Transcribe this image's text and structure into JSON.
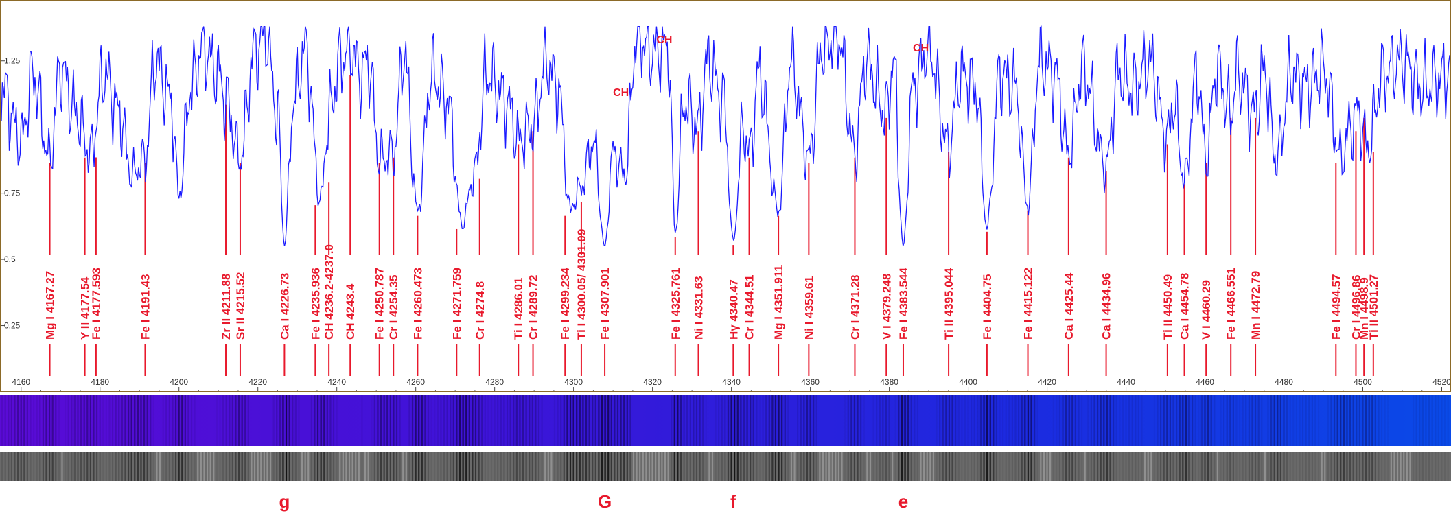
{
  "colors": {
    "spectrum_line": "#1a1aff",
    "label": "#e8192c",
    "frame": "#8c6a28",
    "axis_text": "#333333"
  },
  "chart_data": {
    "type": "line",
    "title": "",
    "xlabel": "",
    "ylabel": "",
    "xlim": [
      4155,
      4522
    ],
    "ylim": [
      0,
      1.48
    ],
    "x_ticks": [
      4160,
      4180,
      4200,
      4220,
      4240,
      4260,
      4280,
      4300,
      4320,
      4340,
      4360,
      4380,
      4400,
      4420,
      4440,
      4460,
      4480,
      4500,
      4520
    ],
    "y_ticks": [
      0.25,
      0.5,
      0.75,
      1.25
    ],
    "grid": false,
    "legend": "none",
    "series": [
      {
        "anchors": [
          [
            4155,
            1.15
          ],
          [
            4160,
            0.95
          ],
          [
            4163,
            1.2
          ],
          [
            4167.27,
            0.88
          ],
          [
            4170,
            1.22
          ],
          [
            4174,
            1.05
          ],
          [
            4177.5,
            0.9
          ],
          [
            4181,
            1.2
          ],
          [
            4185,
            1.05
          ],
          [
            4188,
            0.82
          ],
          [
            4191.43,
            0.88
          ],
          [
            4194,
            1.25
          ],
          [
            4198,
            1.1
          ],
          [
            4200,
            0.74
          ],
          [
            4203,
            1.15
          ],
          [
            4206,
            1.3
          ],
          [
            4210,
            1.2
          ],
          [
            4211.88,
            1.1
          ],
          [
            4215.52,
            0.88
          ],
          [
            4219,
            1.28
          ],
          [
            4222,
            1.35
          ],
          [
            4225,
            1.05
          ],
          [
            4226.73,
            0.55
          ],
          [
            4229,
            1.1
          ],
          [
            4232,
            1.3
          ],
          [
            4235.9,
            0.72
          ],
          [
            4238,
            1.05
          ],
          [
            4241,
            1.25
          ],
          [
            4243.4,
            1.3
          ],
          [
            4246,
            1.2
          ],
          [
            4248,
            1.25
          ],
          [
            4250.8,
            0.88
          ],
          [
            4254.35,
            0.9
          ],
          [
            4257,
            1.28
          ],
          [
            4260.47,
            0.68
          ],
          [
            4264,
            1.2
          ],
          [
            4268,
            1.1
          ],
          [
            4271.76,
            0.63
          ],
          [
            4274.8,
            0.82
          ],
          [
            4278,
            1.2
          ],
          [
            4283,
            1.1
          ],
          [
            4286,
            0.95
          ],
          [
            4289.72,
            1.0
          ],
          [
            4293,
            1.25
          ],
          [
            4296,
            1.15
          ],
          [
            4299.23,
            0.68
          ],
          [
            4300.3,
            0.73
          ],
          [
            4302,
            0.78
          ],
          [
            4305,
            0.95
          ],
          [
            4307.9,
            0.55
          ],
          [
            4310,
            0.9
          ],
          [
            4313,
            0.82
          ],
          [
            4316,
            1.35
          ],
          [
            4320,
            1.28
          ],
          [
            4324,
            1.3
          ],
          [
            4325.76,
            0.6
          ],
          [
            4328,
            1.1
          ],
          [
            4331.63,
            1.0
          ],
          [
            4334,
            1.25
          ],
          [
            4338,
            1.1
          ],
          [
            4340.47,
            0.57
          ],
          [
            4343,
            1.0
          ],
          [
            4344.51,
            0.9
          ],
          [
            4347,
            1.2
          ],
          [
            4351.91,
            0.68
          ],
          [
            4355,
            1.25
          ],
          [
            4359.61,
            0.88
          ],
          [
            4363,
            1.3
          ],
          [
            4367,
            1.35
          ],
          [
            4371.28,
            0.9
          ],
          [
            4374,
            1.25
          ],
          [
            4379.25,
            1.05
          ],
          [
            4381,
            1.25
          ],
          [
            4383.54,
            0.55
          ],
          [
            4386,
            1.15
          ],
          [
            4390,
            1.3
          ],
          [
            4395.04,
            0.92
          ],
          [
            4398,
            1.2
          ],
          [
            4402,
            1.15
          ],
          [
            4404.75,
            0.62
          ],
          [
            4408,
            1.2
          ],
          [
            4412,
            1.15
          ],
          [
            4415.12,
            0.7
          ],
          [
            4418,
            1.25
          ],
          [
            4422,
            1.2
          ],
          [
            4425.44,
            0.9
          ],
          [
            4429,
            1.22
          ],
          [
            4434.96,
            0.85
          ],
          [
            4438,
            1.2
          ],
          [
            4442,
            1.15
          ],
          [
            4446,
            1.25
          ],
          [
            4450.49,
            0.95
          ],
          [
            4452,
            1.1
          ],
          [
            4454.78,
            0.8
          ],
          [
            4458,
            1.2
          ],
          [
            4460.29,
            0.88
          ],
          [
            4463,
            1.22
          ],
          [
            4466.55,
            1.05
          ],
          [
            4468,
            1.2
          ],
          [
            4472.79,
            1.05
          ],
          [
            4475,
            1.22
          ],
          [
            4478,
            0.88
          ],
          [
            4482,
            1.2
          ],
          [
            4486,
            1.15
          ],
          [
            4490,
            1.22
          ],
          [
            4494.57,
            0.88
          ],
          [
            4496.86,
            1.0
          ],
          [
            4498.9,
            1.05
          ],
          [
            4501.27,
            0.92
          ],
          [
            4505,
            1.2
          ],
          [
            4510,
            1.25
          ],
          [
            4515,
            1.15
          ],
          [
            4522,
            1.2
          ]
        ]
      }
    ],
    "annotations": [
      {
        "label": "Mg I  4167.27",
        "x": 4167.27
      },
      {
        "label": "Y II  4177.54",
        "x": 4177.54
      },
      {
        "label": "Fe I  4177.593",
        "x": 4177.593
      },
      {
        "label": "Fe I  4191.43",
        "x": 4191.43
      },
      {
        "label": "Zr II  4211.88",
        "x": 4211.88
      },
      {
        "label": "Sr II  4215.52",
        "x": 4215.52
      },
      {
        "label": "Ca I  4226.73",
        "x": 4226.73
      },
      {
        "label": "Fe I  4235.936",
        "x": 4235.936
      },
      {
        "label": "CH  4236.2-4237.0",
        "x": 4236.6
      },
      {
        "label": "CH  4243.4",
        "x": 4243.4
      },
      {
        "label": "Fe I  4250.787",
        "x": 4250.787
      },
      {
        "label": "Cr I  4254.35",
        "x": 4254.35
      },
      {
        "label": "Fe I  4260.473",
        "x": 4260.473
      },
      {
        "label": "Fe I  4271.759",
        "x": 4271.759
      },
      {
        "label": "Cr I  4274.8",
        "x": 4274.8
      },
      {
        "label": "Ti I  4286.01",
        "x": 4286.01
      },
      {
        "label": "Cr I  4289.72",
        "x": 4289.72
      },
      {
        "label": "Fe I  4299.234",
        "x": 4299.234
      },
      {
        "label": "Ti I  4300.05/ 4301.09",
        "x": 4300.57
      },
      {
        "label": "Fe I  4307.901",
        "x": 4307.901
      },
      {
        "label": "Fe I  4325.761",
        "x": 4325.761
      },
      {
        "label": "Ni I  4331.63",
        "x": 4331.63
      },
      {
        "label": "Hγ  4340.47",
        "x": 4340.47
      },
      {
        "label": "Cr I  4344.51",
        "x": 4344.51
      },
      {
        "label": "Mg I  4351.911",
        "x": 4351.911
      },
      {
        "label": "Ni I  4359.61",
        "x": 4359.61
      },
      {
        "label": "Cr I  4371.28",
        "x": 4371.28
      },
      {
        "label": "V I  4379.248",
        "x": 4379.248
      },
      {
        "label": "Fe I  4383.544",
        "x": 4383.544
      },
      {
        "label": "Ti II  4395.044",
        "x": 4395.044
      },
      {
        "label": "Fe I  4404.75",
        "x": 4404.75
      },
      {
        "label": "Fe I  4415.122",
        "x": 4415.122
      },
      {
        "label": "Ca I  4425.44",
        "x": 4425.44
      },
      {
        "label": "Ca I  4434.96",
        "x": 4434.96
      },
      {
        "label": "Ti II  4450.49",
        "x": 4450.49
      },
      {
        "label": "Ca I  4454.78",
        "x": 4454.78
      },
      {
        "label": "V I  4460.29",
        "x": 4460.29
      },
      {
        "label": "Fe I  4466.551",
        "x": 4466.551
      },
      {
        "label": "Mn I  4472.79",
        "x": 4472.79
      },
      {
        "label": "Fe I  4494.57",
        "x": 4494.57
      },
      {
        "label": "Cr I  4496.86",
        "x": 4496.86
      },
      {
        "label": "Mn I  4498.9",
        "x": 4498.9
      },
      {
        "label": "Ti II  4501.27",
        "x": 4501.27
      }
    ],
    "band_labels": [
      {
        "label": "CH",
        "x": 4312
      },
      {
        "label": "CH",
        "x": 4323
      },
      {
        "label": "CH",
        "x": 4388
      }
    ],
    "fraunhofer_labels": [
      {
        "label": "g",
        "x": 4226.73
      },
      {
        "label": "G",
        "x": 4307.9
      },
      {
        "label": "f",
        "x": 4340.47
      },
      {
        "label": "e",
        "x": 4383.54
      }
    ]
  }
}
